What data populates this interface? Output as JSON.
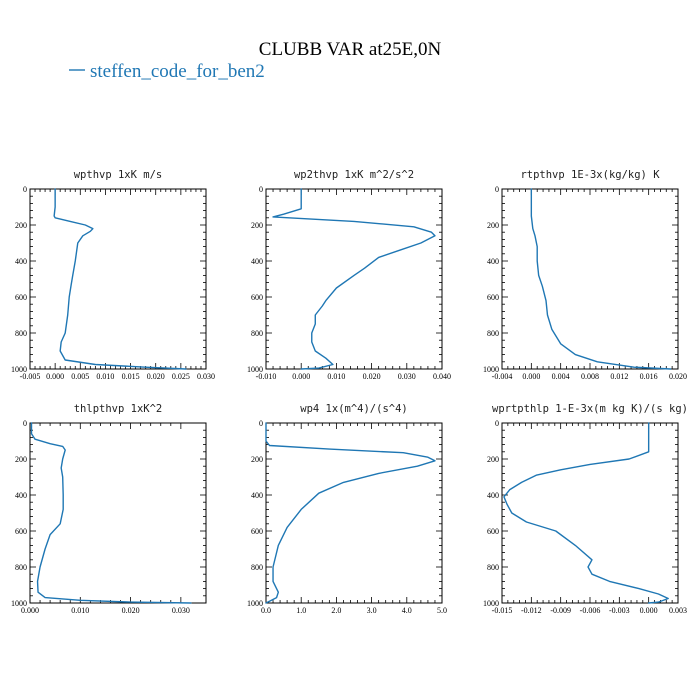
{
  "figure": {
    "title": "CLUBB VAR at25E,0N",
    "legend": [
      {
        "label": "steffen_code_for_ben2",
        "color": "#1f77b4"
      }
    ]
  },
  "chart_data": [
    {
      "type": "line",
      "title": "wpthvp  1xK m/s",
      "xlim": [
        -0.005,
        0.03
      ],
      "ylim": [
        1000,
        0
      ],
      "xticks": [
        "-0.005",
        "0.000",
        "0.005",
        "0.010",
        "0.015",
        "0.020",
        "0.025",
        "0.030"
      ],
      "yticks": [
        "0",
        "200",
        "400",
        "600",
        "800",
        "1000"
      ],
      "x_tick_values": [
        -0.005,
        0.0,
        0.005,
        0.01,
        0.015,
        0.02,
        0.025,
        0.03
      ],
      "y_tick_values": [
        0,
        200,
        400,
        600,
        800,
        1000
      ],
      "series": [
        {
          "name": "steffen_code_for_ben2",
          "color": "#1f77b4",
          "points": [
            [
              0.0,
              0
            ],
            [
              0.0,
              100
            ],
            [
              -0.0002,
              150
            ],
            [
              0.0,
              160
            ],
            [
              0.003,
              180
            ],
            [
              0.006,
              200
            ],
            [
              0.0075,
              220
            ],
            [
              0.007,
              235
            ],
            [
              0.0055,
              260
            ],
            [
              0.0045,
              300
            ],
            [
              0.004,
              400
            ],
            [
              0.0035,
              480
            ],
            [
              0.0032,
              530
            ],
            [
              0.0028,
              600
            ],
            [
              0.0025,
              700
            ],
            [
              0.002,
              800
            ],
            [
              0.0012,
              850
            ],
            [
              0.001,
              900
            ],
            [
              0.002,
              950
            ],
            [
              0.008,
              975
            ],
            [
              0.018,
              990
            ],
            [
              0.026,
              1000
            ]
          ]
        }
      ]
    },
    {
      "type": "line",
      "title": "wp2thvp  1xK m^2/s^2",
      "xlim": [
        -0.01,
        0.04
      ],
      "ylim": [
        1000,
        0
      ],
      "xticks": [
        "-0.010",
        "0.000",
        "0.010",
        "0.020",
        "0.030",
        "0.040"
      ],
      "yticks": [
        "0",
        "200",
        "400",
        "600",
        "800",
        "1000"
      ],
      "x_tick_values": [
        -0.01,
        0.0,
        0.01,
        0.02,
        0.03,
        0.04
      ],
      "y_tick_values": [
        0,
        200,
        400,
        600,
        800,
        1000
      ],
      "series": [
        {
          "name": "steffen_code_for_ben2",
          "color": "#1f77b4",
          "points": [
            [
              0.0,
              0
            ],
            [
              0.0,
              110
            ],
            [
              -0.005,
              140
            ],
            [
              -0.008,
              155
            ],
            [
              0.015,
              180
            ],
            [
              0.032,
              210
            ],
            [
              0.037,
              240
            ],
            [
              0.038,
              260
            ],
            [
              0.034,
              300
            ],
            [
              0.028,
              340
            ],
            [
              0.022,
              380
            ],
            [
              0.018,
              440
            ],
            [
              0.015,
              480
            ],
            [
              0.01,
              550
            ],
            [
              0.007,
              620
            ],
            [
              0.006,
              650
            ],
            [
              0.004,
              700
            ],
            [
              0.004,
              750
            ],
            [
              0.003,
              800
            ],
            [
              0.003,
              850
            ],
            [
              0.004,
              900
            ],
            [
              0.007,
              940
            ],
            [
              0.009,
              975
            ],
            [
              0.005,
              995
            ],
            [
              0.0,
              1000
            ]
          ]
        }
      ]
    },
    {
      "type": "line",
      "title": "rtpthvp  1E-3x(kg/kg) K",
      "xlim": [
        -0.004,
        0.02
      ],
      "ylim": [
        1000,
        0
      ],
      "xticks": [
        "-0.004",
        "0.000",
        "0.004",
        "0.008",
        "0.012",
        "0.016",
        "0.020"
      ],
      "yticks": [
        "0",
        "200",
        "400",
        "600",
        "800",
        "1000"
      ],
      "x_tick_values": [
        -0.004,
        0.0,
        0.004,
        0.008,
        0.012,
        0.016,
        0.02
      ],
      "y_tick_values": [
        0,
        200,
        400,
        600,
        800,
        1000
      ],
      "series": [
        {
          "name": "steffen_code_for_ben2",
          "color": "#1f77b4",
          "points": [
            [
              0.0,
              0
            ],
            [
              0.0,
              150
            ],
            [
              0.0002,
              220
            ],
            [
              0.0005,
              260
            ],
            [
              0.0008,
              320
            ],
            [
              0.0008,
              400
            ],
            [
              0.001,
              480
            ],
            [
              0.0015,
              540
            ],
            [
              0.002,
              620
            ],
            [
              0.0022,
              700
            ],
            [
              0.0028,
              780
            ],
            [
              0.004,
              860
            ],
            [
              0.006,
              920
            ],
            [
              0.009,
              960
            ],
            [
              0.014,
              990
            ],
            [
              0.019,
              1000
            ]
          ]
        }
      ]
    },
    {
      "type": "line",
      "title": "thlpthvp  1xK^2",
      "xlim": [
        0.0,
        0.035
      ],
      "ylim": [
        1000,
        0
      ],
      "xticks": [
        "0.000",
        "0.010",
        "0.020",
        "0.030"
      ],
      "yticks": [
        "0",
        "200",
        "400",
        "600",
        "800",
        "1000"
      ],
      "x_tick_values": [
        0.0,
        0.01,
        0.02,
        0.03
      ],
      "y_tick_values": [
        0,
        200,
        400,
        600,
        800,
        1000
      ],
      "series": [
        {
          "name": "steffen_code_for_ben2",
          "color": "#1f77b4",
          "points": [
            [
              0.0003,
              0
            ],
            [
              0.0003,
              60
            ],
            [
              0.001,
              90
            ],
            [
              0.004,
              115
            ],
            [
              0.0065,
              130
            ],
            [
              0.007,
              150
            ],
            [
              0.0065,
              200
            ],
            [
              0.0062,
              250
            ],
            [
              0.0065,
              300
            ],
            [
              0.0066,
              400
            ],
            [
              0.0066,
              480
            ],
            [
              0.006,
              560
            ],
            [
              0.004,
              620
            ],
            [
              0.003,
              700
            ],
            [
              0.002,
              800
            ],
            [
              0.0015,
              880
            ],
            [
              0.0016,
              940
            ],
            [
              0.003,
              970
            ],
            [
              0.01,
              985
            ],
            [
              0.02,
              995
            ],
            [
              0.032,
              1000
            ]
          ]
        }
      ]
    },
    {
      "type": "line",
      "title": "wp4  1x(m^4)/(s^4)",
      "xlim": [
        0.0,
        5.0
      ],
      "ylim": [
        1000,
        0
      ],
      "xticks": [
        "0.0",
        "1.0",
        "2.0",
        "3.0",
        "4.0",
        "5.0"
      ],
      "yticks": [
        "0",
        "200",
        "400",
        "600",
        "800",
        "1000"
      ],
      "x_tick_values": [
        0.0,
        1.0,
        2.0,
        3.0,
        4.0,
        5.0
      ],
      "y_tick_values": [
        0,
        200,
        400,
        600,
        800,
        1000
      ],
      "series": [
        {
          "name": "steffen_code_for_ben2",
          "color": "#1f77b4",
          "points": [
            [
              0.0,
              0
            ],
            [
              0.0,
              100
            ],
            [
              0.1,
              125
            ],
            [
              1.8,
              145
            ],
            [
              3.9,
              165
            ],
            [
              4.6,
              190
            ],
            [
              4.8,
              210
            ],
            [
              4.3,
              240
            ],
            [
              3.2,
              280
            ],
            [
              2.2,
              330
            ],
            [
              1.5,
              390
            ],
            [
              1.0,
              480
            ],
            [
              0.6,
              580
            ],
            [
              0.35,
              680
            ],
            [
              0.2,
              800
            ],
            [
              0.2,
              880
            ],
            [
              0.35,
              940
            ],
            [
              0.3,
              970
            ],
            [
              0.1,
              990
            ],
            [
              0.0,
              1000
            ]
          ]
        }
      ]
    },
    {
      "type": "line",
      "title": "wprtpthlp  1-E-3x(m kg K)/(s kg)",
      "xlim": [
        -0.015,
        0.003
      ],
      "ylim": [
        1000,
        0
      ],
      "xticks": [
        "-0.015",
        "-0.012",
        "-0.009",
        "-0.006",
        "-0.003",
        "0.000",
        "0.003"
      ],
      "yticks": [
        "0",
        "200",
        "400",
        "600",
        "800",
        "1000"
      ],
      "x_tick_values": [
        -0.015,
        -0.012,
        -0.009,
        -0.006,
        -0.003,
        0.0,
        0.003
      ],
      "y_tick_values": [
        0,
        200,
        400,
        600,
        800,
        1000
      ],
      "series": [
        {
          "name": "steffen_code_for_ben2",
          "color": "#1f77b4",
          "points": [
            [
              0.0,
              0
            ],
            [
              0.0,
              160
            ],
            [
              -0.002,
              200
            ],
            [
              -0.006,
              230
            ],
            [
              -0.009,
              260
            ],
            [
              -0.0115,
              290
            ],
            [
              -0.013,
              330
            ],
            [
              -0.0142,
              370
            ],
            [
              -0.0148,
              410
            ],
            [
              -0.0145,
              450
            ],
            [
              -0.014,
              500
            ],
            [
              -0.0125,
              550
            ],
            [
              -0.0095,
              600
            ],
            [
              -0.0075,
              680
            ],
            [
              -0.0058,
              760
            ],
            [
              -0.0062,
              800
            ],
            [
              -0.0058,
              840
            ],
            [
              -0.004,
              880
            ],
            [
              -0.001,
              920
            ],
            [
              0.001,
              950
            ],
            [
              0.002,
              975
            ],
            [
              0.001,
              995
            ],
            [
              0.0,
              1000
            ]
          ]
        }
      ]
    }
  ]
}
